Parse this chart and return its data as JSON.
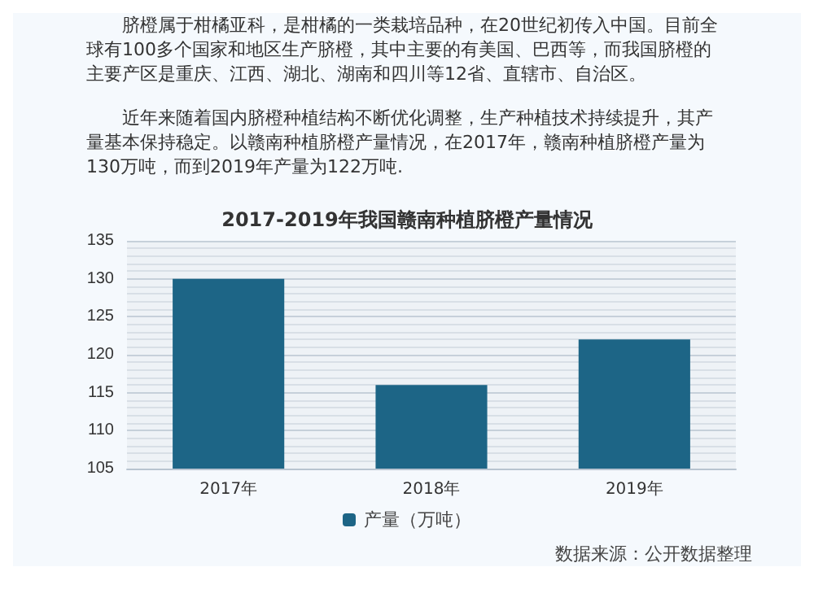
{
  "chart_data": {
    "type": "bar",
    "title": "2017-2019年我国赣南种植脐橙产量情况",
    "categories": [
      "2017年",
      "2018年",
      "2019年"
    ],
    "series": [
      {
        "name": "产量（万吨）",
        "color": "#1d6586",
        "values": [
          130,
          116,
          122
        ]
      }
    ],
    "ylim": [
      105,
      135
    ],
    "yticks": [
      105,
      110,
      115,
      120,
      125,
      130,
      135
    ],
    "grid": "y",
    "legend": "bottom",
    "annotations": [
      "脐橙属于柑橘亚科，是柑橘的一类栽培品种，在20世纪初传入中国。目前全球有100多个国家和地区生产脐橙，其中主要的有美国、巴西等，而我国脐橙的主要产区是重庆、江西、湖北、湖南和四川等12省、直辖市、自治区。",
      "近年来随着国内脐橙种植结构不断优化调整，生产种植技术持续提升，其产量基本保持稳定。以赣南种植脐橙产量情况，在2017年，赣南种植脐橙产量为130万吨，而到2019年产量为122万吨.",
      "数据来源：公开数据整理"
    ]
  }
}
